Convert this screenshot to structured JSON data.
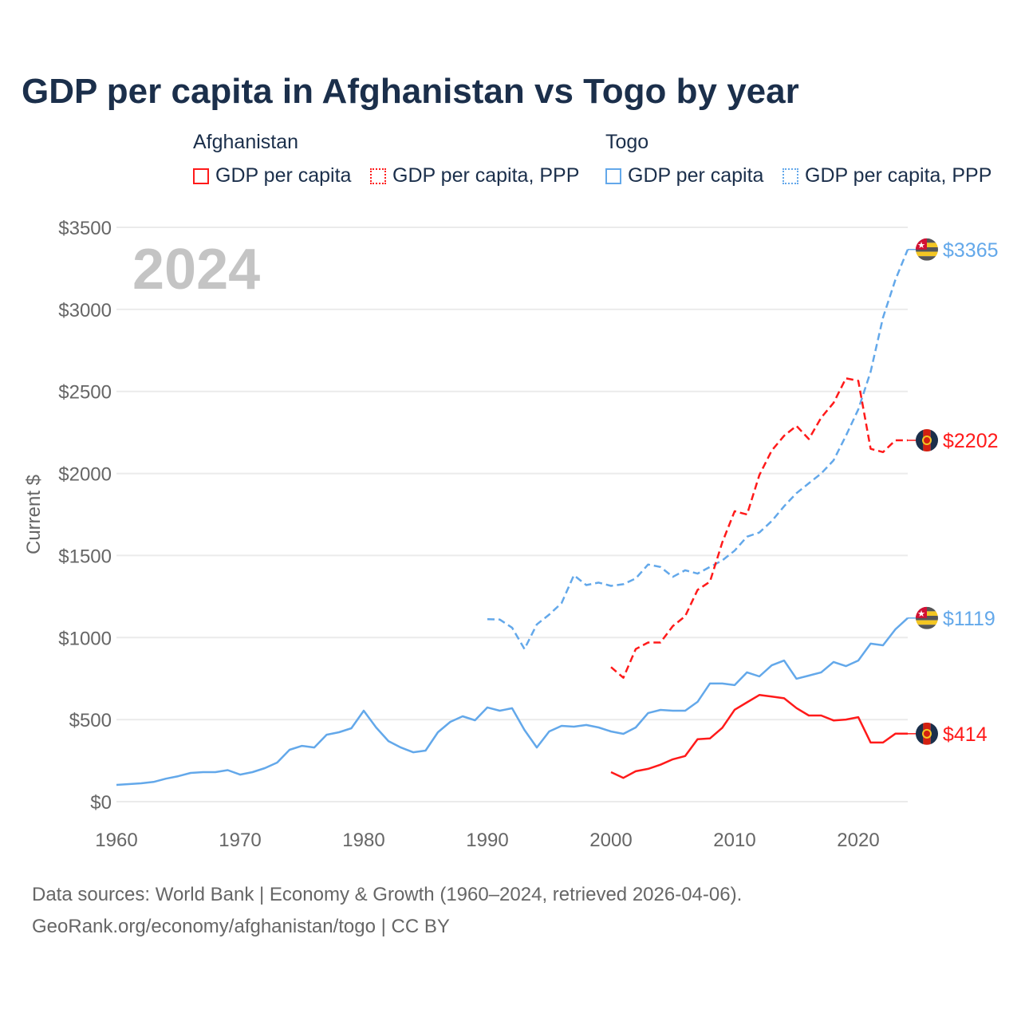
{
  "title": "GDP per capita in Afghanistan vs Togo by year",
  "legend": {
    "groups": [
      {
        "name": "Afghanistan",
        "items": [
          "GDP per capita",
          "GDP per capita, PPP"
        ]
      },
      {
        "name": "Togo",
        "items": [
          "GDP per capita",
          "GDP per capita, PPP"
        ]
      }
    ]
  },
  "year_watermark": "2024",
  "footer": {
    "line1": "Data sources: World Bank | Economy & Growth (1960–2024, retrieved 2026-04-06).",
    "line2": "GeoRank.org/economy/afghanistan/togo | CC BY"
  },
  "colors": {
    "afghanistan": "#ff1a1a",
    "togo": "#63a8ea"
  },
  "chart_data": {
    "type": "line",
    "title": "GDP per capita in Afghanistan vs Togo by year",
    "xlabel": "",
    "ylabel": "Current $",
    "xlim": [
      1960,
      2024
    ],
    "ylim": [
      0,
      3500
    ],
    "xticks": [
      1960,
      1970,
      1980,
      1990,
      2000,
      2010,
      2020
    ],
    "yticks": [
      0,
      500,
      1000,
      1500,
      2000,
      2500,
      3000,
      3500
    ],
    "ytick_labels": [
      "$0",
      "$500",
      "$1000",
      "$1500",
      "$2000",
      "$2500",
      "$3000",
      "$3500"
    ],
    "grid": true,
    "series": [
      {
        "name": "Togo GDP per capita",
        "country": "togo",
        "dash": false,
        "start": 1960,
        "end_label": "$1119",
        "values": [
          102,
          107,
          112,
          120,
          140,
          155,
          175,
          180,
          180,
          192,
          165,
          180,
          204,
          238,
          316,
          340,
          330,
          408,
          423,
          447,
          554,
          452,
          369,
          330,
          301,
          311,
          423,
          486,
          520,
          496,
          574,
          554,
          569,
          437,
          330,
          428,
          462,
          457,
          467,
          452,
          428,
          413,
          452,
          540,
          559,
          554,
          554,
          608,
          720,
          720,
          710,
          788,
          763,
          831,
          860,
          749,
          768,
          788,
          851,
          826,
          860,
          963,
          953,
          1050,
          1119
        ]
      },
      {
        "name": "Togo GDP per capita, PPP",
        "country": "togo",
        "dash": true,
        "start": 1990,
        "end_label": "$3365",
        "values": [
          1112,
          1110,
          1060,
          930,
          1080,
          1140,
          1210,
          1380,
          1320,
          1335,
          1315,
          1325,
          1360,
          1445,
          1430,
          1370,
          1410,
          1390,
          1430,
          1470,
          1530,
          1615,
          1640,
          1710,
          1800,
          1880,
          1940,
          2000,
          2080,
          2230,
          2390,
          2620,
          2950,
          3180,
          3365
        ]
      },
      {
        "name": "Afghanistan GDP per capita",
        "country": "afghanistan",
        "dash": false,
        "start": 2000,
        "end_label": "$414",
        "values": [
          180,
          145,
          185,
          200,
          225,
          258,
          278,
          380,
          385,
          450,
          560,
          605,
          650,
          640,
          630,
          570,
          525,
          525,
          495,
          500,
          515,
          360,
          360,
          414,
          414
        ]
      },
      {
        "name": "Afghanistan GDP per capita, PPP",
        "country": "afghanistan",
        "dash": true,
        "start": 2000,
        "end_label": "$2202",
        "values": [
          820,
          755,
          930,
          970,
          970,
          1070,
          1130,
          1290,
          1340,
          1580,
          1770,
          1750,
          1990,
          2140,
          2230,
          2290,
          2210,
          2340,
          2430,
          2580,
          2565,
          2150,
          2130,
          2202,
          2202
        ]
      }
    ]
  }
}
